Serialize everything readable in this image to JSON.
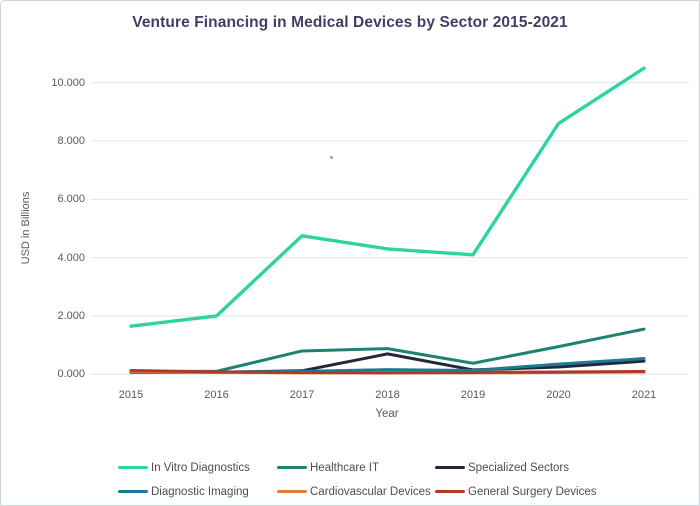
{
  "title": "Venture Financing in Medical Devices by Sector 2015-2021",
  "chart_data": {
    "type": "line",
    "title": "Venture Financing in Medical Devices by Sector 2015-2021",
    "xlabel": "Year",
    "ylabel": "USD in Billions",
    "categories": [
      "2015",
      "2016",
      "2017",
      "2018",
      "2019",
      "2020",
      "2021"
    ],
    "y_ticks": [
      "0.000",
      "2.000",
      "4.000",
      "6.000",
      "8.000",
      "10.000"
    ],
    "y_tick_values": [
      0,
      2,
      4,
      6,
      8,
      10
    ],
    "ylim": [
      0,
      10.6
    ],
    "grid": true,
    "legend_position": "bottom",
    "series": [
      {
        "name": "In Vitro Diagnostics",
        "color": "#2ed3a2",
        "width": 3.4,
        "values": [
          1.65,
          2.0,
          4.75,
          4.3,
          4.1,
          8.6,
          10.5
        ]
      },
      {
        "name": "Healthcare IT",
        "color": "#1f8170",
        "width": 3,
        "values": [
          0.1,
          0.1,
          0.8,
          0.88,
          0.38,
          0.95,
          1.55
        ]
      },
      {
        "name": "Specialized Sectors",
        "color": "#232838",
        "width": 3,
        "values": [
          0.08,
          0.07,
          0.12,
          0.7,
          0.15,
          0.25,
          0.45
        ]
      },
      {
        "name": "Diagnostic Imaging",
        "color": "#1a7b93",
        "width": 3,
        "values": [
          0.06,
          0.08,
          0.1,
          0.16,
          0.13,
          0.35,
          0.54
        ]
      },
      {
        "name": "Cardiovascular Devices",
        "color": "#e07f3a",
        "width": 3,
        "values": [
          0.1,
          0.07,
          0.05,
          0.06,
          0.05,
          0.06,
          0.08
        ]
      },
      {
        "name": "General Surgery Devices",
        "color": "#b03a28",
        "width": 3,
        "values": [
          0.13,
          0.08,
          0.06,
          0.05,
          0.06,
          0.08,
          0.1
        ]
      }
    ]
  },
  "colors": {
    "title": "#3f3f66",
    "axis_text": "#595959",
    "legend_text": "#4d4d4d",
    "gridline": "#e4e4e4",
    "background": "#ffffff"
  }
}
